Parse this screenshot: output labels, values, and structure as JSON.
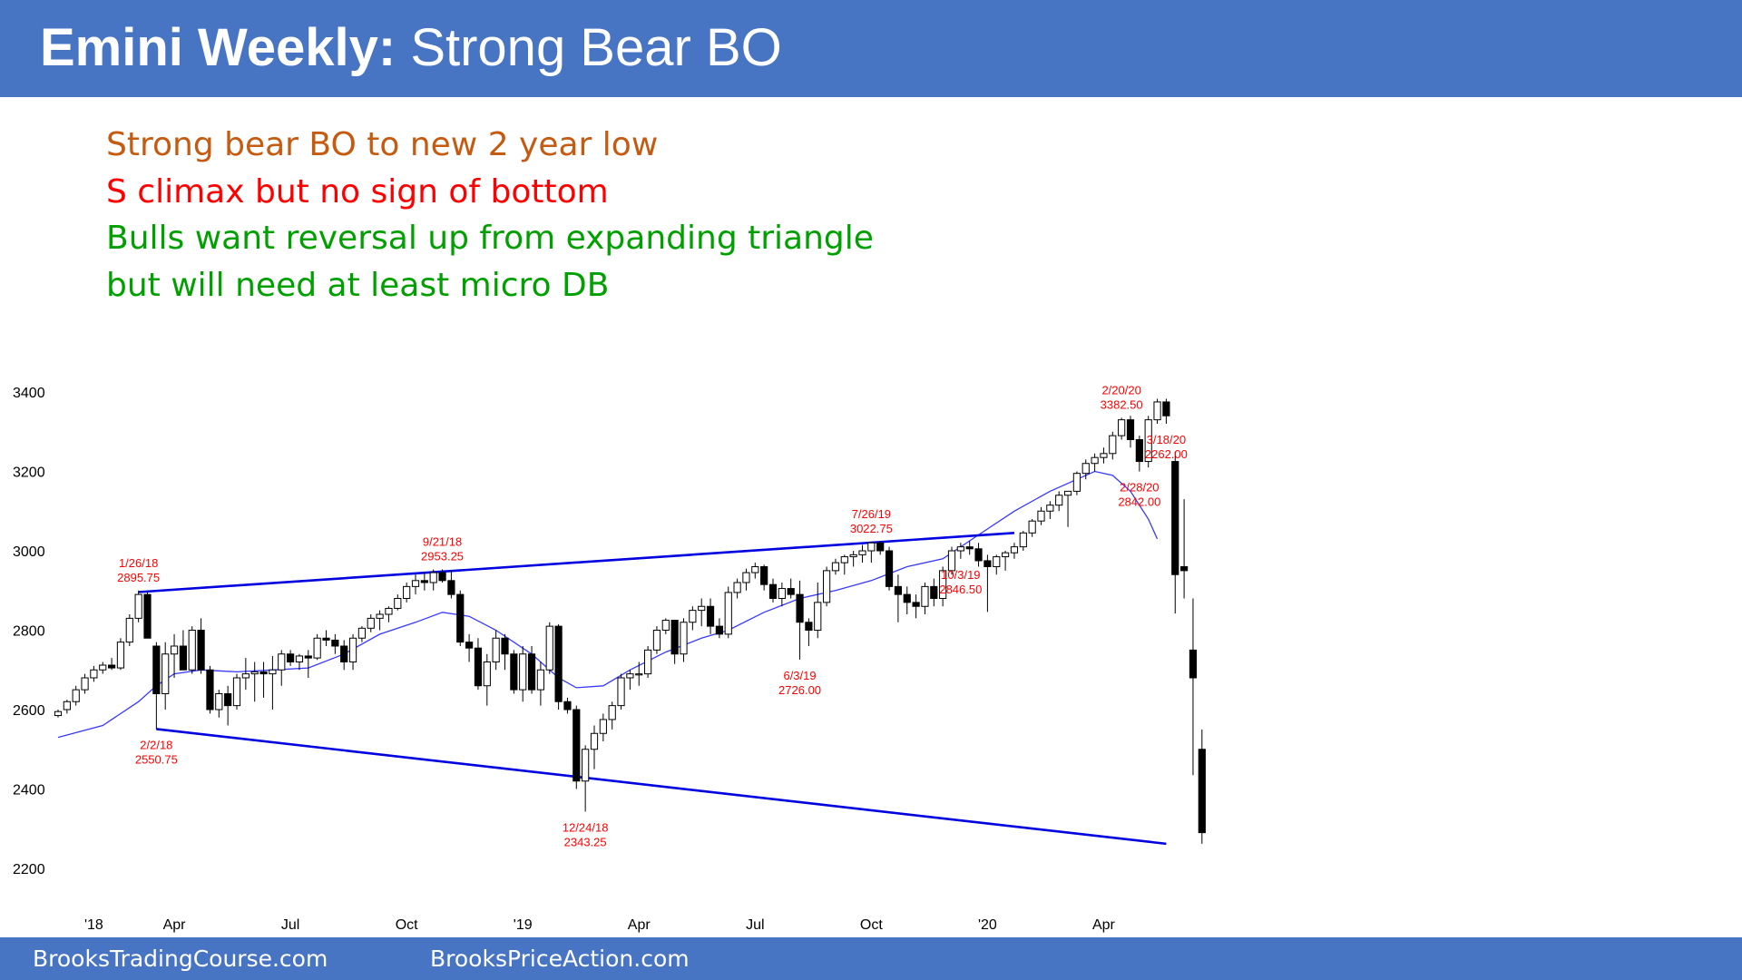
{
  "title": {
    "bold": "Emini Weekly:",
    "rest": "Strong Bear BO"
  },
  "notes": [
    {
      "text": "Strong bear BO to new 2 year low",
      "color": "#c55a11"
    },
    {
      "text": "S climax but no sign of bottom",
      "color": "#ff0000"
    },
    {
      "text": "Bulls want reversal up from expanding triangle",
      "color": "#00a000"
    },
    {
      "text": "but will need at least micro DB",
      "color": "#00a000"
    }
  ],
  "footer": {
    "left": "BrooksTradingCourse.com",
    "right": "BrooksPriceAction.com"
  },
  "colors": {
    "banner": "#4775c4",
    "trendline": "#0000e0",
    "ema": "#3838ff",
    "annotation": "#ff0000",
    "bull_body": "#ffffff",
    "bear_body": "#000000"
  },
  "chart_data": {
    "type": "candlestick",
    "title": "Emini Weekly",
    "xlabel": "",
    "ylabel": "",
    "ylim": [
      2150,
      3470
    ],
    "yticks": [
      2200,
      2400,
      2600,
      2800,
      3000,
      3200,
      3400
    ],
    "x_tick_labels": [
      {
        "week": 4,
        "label": "'18"
      },
      {
        "week": 13,
        "label": "Apr"
      },
      {
        "week": 26,
        "label": "Jul"
      },
      {
        "week": 39,
        "label": "Oct"
      },
      {
        "week": 52,
        "label": "'19"
      },
      {
        "week": 65,
        "label": "Apr"
      },
      {
        "week": 78,
        "label": "Jul"
      },
      {
        "week": 91,
        "label": "Oct"
      },
      {
        "week": 104,
        "label": "'20"
      },
      {
        "week": 117,
        "label": "Apr"
      }
    ],
    "candles": [
      [
        2585,
        2600,
        2580,
        2595
      ],
      [
        2600,
        2625,
        2590,
        2620
      ],
      [
        2620,
        2660,
        2610,
        2650
      ],
      [
        2650,
        2690,
        2640,
        2680
      ],
      [
        2680,
        2710,
        2670,
        2700
      ],
      [
        2700,
        2720,
        2690,
        2712
      ],
      [
        2712,
        2730,
        2700,
        2705
      ],
      [
        2705,
        2780,
        2700,
        2770
      ],
      [
        2770,
        2840,
        2760,
        2830
      ],
      [
        2830,
        2900,
        2820,
        2890
      ],
      [
        2890,
        2896,
        2780,
        2780
      ],
      [
        2760,
        2770,
        2551,
        2640
      ],
      [
        2640,
        2770,
        2600,
        2740
      ],
      [
        2740,
        2790,
        2680,
        2760
      ],
      [
        2760,
        2800,
        2700,
        2700
      ],
      [
        2700,
        2810,
        2690,
        2800
      ],
      [
        2800,
        2830,
        2690,
        2700
      ],
      [
        2700,
        2710,
        2590,
        2600
      ],
      [
        2600,
        2650,
        2580,
        2640
      ],
      [
        2640,
        2660,
        2560,
        2610
      ],
      [
        2610,
        2690,
        2600,
        2680
      ],
      [
        2680,
        2730,
        2650,
        2690
      ],
      [
        2690,
        2720,
        2620,
        2695
      ],
      [
        2695,
        2720,
        2630,
        2690
      ],
      [
        2690,
        2735,
        2600,
        2700
      ],
      [
        2700,
        2750,
        2660,
        2740
      ],
      [
        2740,
        2750,
        2710,
        2720
      ],
      [
        2720,
        2740,
        2700,
        2735
      ],
      [
        2735,
        2750,
        2680,
        2730
      ],
      [
        2730,
        2790,
        2725,
        2780
      ],
      [
        2780,
        2800,
        2760,
        2775
      ],
      [
        2775,
        2790,
        2740,
        2760
      ],
      [
        2760,
        2775,
        2700,
        2720
      ],
      [
        2720,
        2790,
        2700,
        2780
      ],
      [
        2780,
        2810,
        2770,
        2805
      ],
      [
        2805,
        2840,
        2795,
        2830
      ],
      [
        2830,
        2850,
        2800,
        2840
      ],
      [
        2840,
        2860,
        2820,
        2855
      ],
      [
        2855,
        2890,
        2850,
        2880
      ],
      [
        2880,
        2920,
        2870,
        2910
      ],
      [
        2910,
        2940,
        2890,
        2925
      ],
      [
        2925,
        2945,
        2900,
        2920
      ],
      [
        2920,
        2953,
        2900,
        2945
      ],
      [
        2945,
        2953,
        2920,
        2925
      ],
      [
        2925,
        2950,
        2880,
        2890
      ],
      [
        2890,
        2900,
        2760,
        2770
      ],
      [
        2770,
        2790,
        2720,
        2755
      ],
      [
        2755,
        2780,
        2650,
        2660
      ],
      [
        2660,
        2740,
        2610,
        2720
      ],
      [
        2720,
        2800,
        2700,
        2780
      ],
      [
        2780,
        2790,
        2700,
        2740
      ],
      [
        2740,
        2750,
        2640,
        2650
      ],
      [
        2650,
        2760,
        2620,
        2740
      ],
      [
        2740,
        2760,
        2640,
        2650
      ],
      [
        2650,
        2720,
        2610,
        2700
      ],
      [
        2700,
        2820,
        2690,
        2810
      ],
      [
        2810,
        2815,
        2600,
        2620
      ],
      [
        2620,
        2630,
        2590,
        2600
      ],
      [
        2600,
        2610,
        2400,
        2420
      ],
      [
        2420,
        2510,
        2343,
        2500
      ],
      [
        2500,
        2560,
        2450,
        2540
      ],
      [
        2540,
        2590,
        2520,
        2575
      ],
      [
        2575,
        2620,
        2550,
        2610
      ],
      [
        2610,
        2690,
        2600,
        2680
      ],
      [
        2680,
        2700,
        2650,
        2690
      ],
      [
        2690,
        2720,
        2660,
        2690
      ],
      [
        2690,
        2760,
        2680,
        2750
      ],
      [
        2750,
        2810,
        2740,
        2800
      ],
      [
        2800,
        2830,
        2790,
        2825
      ],
      [
        2825,
        2820,
        2715,
        2740
      ],
      [
        2740,
        2830,
        2720,
        2820
      ],
      [
        2820,
        2860,
        2800,
        2850
      ],
      [
        2850,
        2880,
        2810,
        2860
      ],
      [
        2860,
        2880,
        2790,
        2810
      ],
      [
        2810,
        2830,
        2780,
        2790
      ],
      [
        2790,
        2910,
        2780,
        2895
      ],
      [
        2895,
        2930,
        2880,
        2920
      ],
      [
        2920,
        2955,
        2900,
        2945
      ],
      [
        2945,
        2970,
        2930,
        2960
      ],
      [
        2960,
        2965,
        2900,
        2915
      ],
      [
        2915,
        2930,
        2870,
        2880
      ],
      [
        2880,
        2920,
        2860,
        2905
      ],
      [
        2905,
        2930,
        2880,
        2890
      ],
      [
        2890,
        2925,
        2726,
        2820
      ],
      [
        2820,
        2830,
        2760,
        2800
      ],
      [
        2800,
        2920,
        2780,
        2870
      ],
      [
        2870,
        2960,
        2860,
        2950
      ],
      [
        2950,
        2980,
        2940,
        2970
      ],
      [
        2970,
        2990,
        2940,
        2985
      ],
      [
        2985,
        3000,
        2960,
        2990
      ],
      [
        2990,
        3015,
        2970,
        3000
      ],
      [
        3000,
        3023,
        2970,
        3020
      ],
      [
        3020,
        3023,
        2990,
        3000
      ],
      [
        3000,
        3010,
        2900,
        2910
      ],
      [
        2910,
        2940,
        2820,
        2890
      ],
      [
        2890,
        2910,
        2840,
        2870
      ],
      [
        2870,
        2890,
        2830,
        2860
      ],
      [
        2860,
        2920,
        2840,
        2910
      ],
      [
        2910,
        2930,
        2860,
        2880
      ],
      [
        2880,
        2960,
        2860,
        2950
      ],
      [
        2950,
        3010,
        2940,
        3000
      ],
      [
        3000,
        3020,
        2980,
        3010
      ],
      [
        3010,
        3025,
        2990,
        3005
      ],
      [
        3005,
        3020,
        2960,
        2975
      ],
      [
        2975,
        2990,
        2846,
        2960
      ],
      [
        2960,
        2990,
        2940,
        2985
      ],
      [
        2985,
        3000,
        2950,
        2995
      ],
      [
        2995,
        3020,
        2980,
        3010
      ],
      [
        3010,
        3050,
        3000,
        3045
      ],
      [
        3045,
        3080,
        3035,
        3075
      ],
      [
        3075,
        3110,
        3065,
        3100
      ],
      [
        3100,
        3125,
        3080,
        3115
      ],
      [
        3115,
        3150,
        3100,
        3140
      ],
      [
        3140,
        3145,
        3060,
        3150
      ],
      [
        3150,
        3200,
        3140,
        3195
      ],
      [
        3195,
        3230,
        3180,
        3220
      ],
      [
        3220,
        3245,
        3200,
        3235
      ],
      [
        3235,
        3260,
        3220,
        3245
      ],
      [
        3245,
        3300,
        3230,
        3290
      ],
      [
        3290,
        3335,
        3280,
        3330
      ],
      [
        3330,
        3340,
        3260,
        3280
      ],
      [
        3280,
        3290,
        3200,
        3225
      ],
      [
        3225,
        3340,
        3210,
        3330
      ],
      [
        3330,
        3383,
        3320,
        3375
      ],
      [
        3375,
        3383,
        3320,
        3340
      ],
      [
        3225,
        3250,
        2842,
        2940
      ],
      [
        2960,
        3130,
        2880,
        2950
      ],
      [
        2750,
        2880,
        2435,
        2680
      ],
      [
        2500,
        2550,
        2262,
        2290
      ]
    ],
    "ema": [
      [
        0,
        2530
      ],
      [
        5,
        2560
      ],
      [
        9,
        2620
      ],
      [
        11,
        2660
      ],
      [
        13,
        2690
      ],
      [
        16,
        2700
      ],
      [
        20,
        2695
      ],
      [
        24,
        2700
      ],
      [
        28,
        2705
      ],
      [
        32,
        2740
      ],
      [
        36,
        2790
      ],
      [
        40,
        2820
      ],
      [
        43,
        2845
      ],
      [
        46,
        2835
      ],
      [
        49,
        2800
      ],
      [
        53,
        2740
      ],
      [
        56,
        2680
      ],
      [
        58,
        2655
      ],
      [
        61,
        2660
      ],
      [
        64,
        2700
      ],
      [
        68,
        2745
      ],
      [
        72,
        2780
      ],
      [
        75,
        2800
      ],
      [
        79,
        2845
      ],
      [
        83,
        2880
      ],
      [
        87,
        2900
      ],
      [
        91,
        2925
      ],
      [
        95,
        2960
      ],
      [
        99,
        2980
      ],
      [
        103,
        3040
      ],
      [
        107,
        3100
      ],
      [
        111,
        3150
      ],
      [
        114,
        3180
      ],
      [
        116,
        3200
      ],
      [
        118,
        3190
      ],
      [
        120,
        3150
      ],
      [
        122,
        3080
      ],
      [
        123,
        3030
      ]
    ],
    "trendlines": [
      {
        "name": "upper",
        "from": [
          9,
          2896
        ],
        "to": [
          107,
          3045
        ]
      },
      {
        "name": "lower",
        "from": [
          11,
          2551
        ],
        "to": [
          124,
          2262
        ]
      }
    ],
    "annotations": [
      {
        "week": 9,
        "date": "1/26/18",
        "price": "2895.75",
        "pos": "above"
      },
      {
        "week": 11,
        "date": "2/2/18",
        "price": "2550.75",
        "pos": "below"
      },
      {
        "week": 43,
        "date": "9/21/18",
        "price": "2953.25",
        "pos": "above"
      },
      {
        "week": 59,
        "date": "12/24/18",
        "price": "2343.25",
        "pos": "below"
      },
      {
        "week": 83,
        "date": "6/3/19",
        "price": "2726.00",
        "pos": "below"
      },
      {
        "week": 91,
        "date": "7/26/19",
        "price": "3022.75",
        "pos": "above"
      },
      {
        "week": 101,
        "date": "10/3/19",
        "price": "2846.50",
        "pos": "below"
      },
      {
        "week": 119,
        "date": "2/20/20",
        "price": "3382.50",
        "pos": "above"
      },
      {
        "week": 121,
        "date": "2/28/20",
        "price": "2842.00",
        "pos": "below"
      },
      {
        "week": 124,
        "date": "3/18/20",
        "price": "2262.00",
        "pos": "below"
      }
    ]
  }
}
